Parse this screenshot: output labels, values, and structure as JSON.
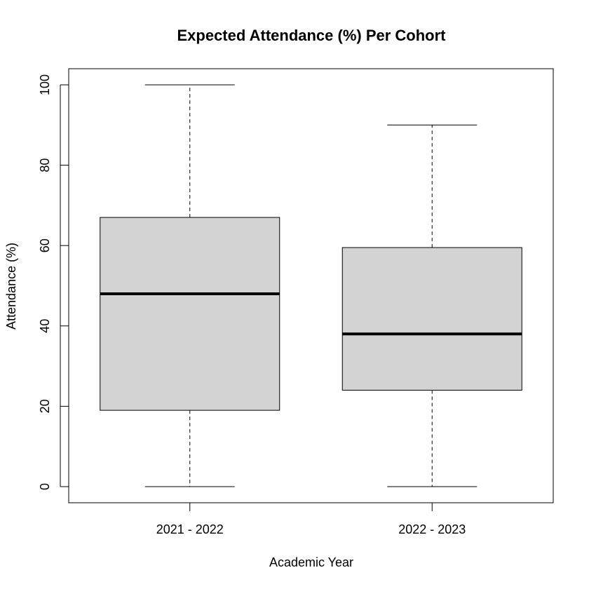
{
  "chart_data": {
    "type": "box",
    "title": "Expected Attendance (%) Per Cohort",
    "xlabel": "Academic Year",
    "ylabel": "Attendance (%)",
    "ylim": [
      -4,
      104
    ],
    "yticks": [
      0,
      20,
      40,
      60,
      80,
      100
    ],
    "grid": false,
    "categories": [
      "2021 - 2022",
      "2022 - 2023"
    ],
    "boxes": [
      {
        "category": "2021 - 2022",
        "min": 0,
        "q1": 19,
        "median": 48,
        "q3": 67,
        "max": 100
      },
      {
        "category": "2022 - 2023",
        "min": 0,
        "q1": 24,
        "median": 38,
        "q3": 59.5,
        "max": 90
      }
    ],
    "colors": {
      "box_fill": "#d3d3d3",
      "stroke": "#000000"
    }
  }
}
